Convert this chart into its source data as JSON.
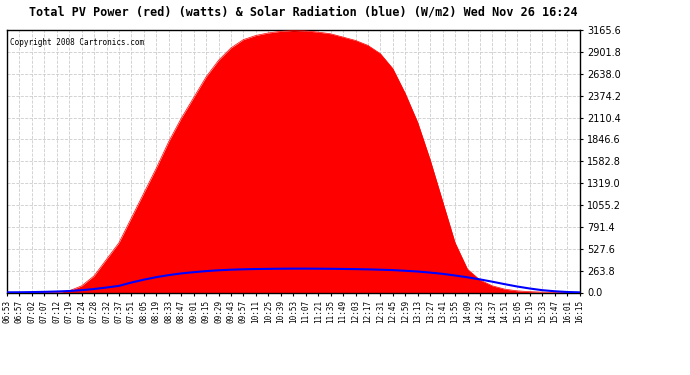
{
  "title": "Total PV Power (red) (watts) & Solar Radiation (blue) (W/m2) Wed Nov 26 16:24",
  "copyright": "Copyright 2008 Cartronics.com",
  "ymax": 3165.6,
  "ytick_interval": 263.8,
  "background_color": "#ffffff",
  "grid_color": "#cccccc",
  "red_color": "#ff0000",
  "blue_color": "#0000ff",
  "x_labels": [
    "06:53",
    "06:57",
    "07:02",
    "07:07",
    "07:12",
    "07:19",
    "07:24",
    "07:28",
    "07:32",
    "07:37",
    "07:51",
    "08:05",
    "08:19",
    "08:33",
    "08:47",
    "09:01",
    "09:15",
    "09:29",
    "09:43",
    "09:57",
    "10:11",
    "10:25",
    "10:39",
    "10:53",
    "11:07",
    "11:21",
    "11:35",
    "11:49",
    "12:03",
    "12:17",
    "12:31",
    "12:45",
    "12:59",
    "13:13",
    "13:27",
    "13:41",
    "13:55",
    "14:09",
    "14:23",
    "14:37",
    "14:51",
    "15:05",
    "15:19",
    "15:33",
    "15:47",
    "16:01",
    "16:15"
  ],
  "pv_power": [
    0,
    0,
    0,
    0,
    0,
    20,
    80,
    200,
    400,
    600,
    900,
    1200,
    1500,
    1820,
    2100,
    2350,
    2600,
    2800,
    2950,
    3050,
    3100,
    3130,
    3150,
    3160,
    3155,
    3140,
    3120,
    3080,
    3040,
    2980,
    2880,
    2700,
    2400,
    2050,
    1600,
    1100,
    600,
    280,
    150,
    80,
    40,
    20,
    10,
    5,
    2,
    0,
    0
  ],
  "solar_rad": [
    2,
    3,
    5,
    8,
    12,
    18,
    28,
    42,
    60,
    80,
    120,
    155,
    185,
    210,
    230,
    245,
    258,
    268,
    275,
    280,
    283,
    285,
    287,
    288,
    288,
    287,
    286,
    284,
    282,
    279,
    275,
    270,
    262,
    253,
    240,
    225,
    205,
    183,
    158,
    130,
    100,
    72,
    48,
    28,
    15,
    6,
    2
  ]
}
